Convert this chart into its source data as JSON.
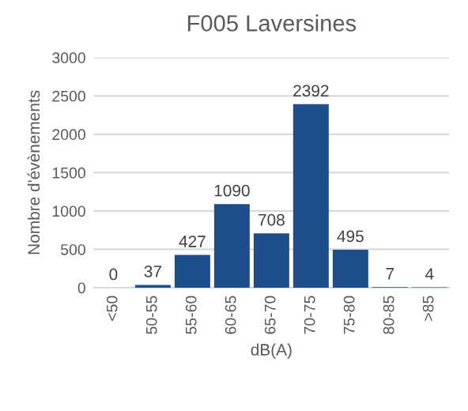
{
  "chart_data": {
    "type": "bar",
    "title": "F005 Laversines",
    "xlabel": "dB(A)",
    "ylabel": "Nombre d'évènements",
    "categories": [
      "<50",
      "50-55",
      "55-60",
      "60-65",
      "65-70",
      "70-75",
      "75-80",
      "80-85",
      ">85"
    ],
    "values": [
      0,
      37,
      427,
      1090,
      708,
      2392,
      495,
      7,
      4
    ],
    "color": "#1f4e8c",
    "ylim": [
      0,
      3000
    ],
    "yticks": [
      0,
      500,
      1000,
      1500,
      2000,
      2500,
      3000
    ],
    "grid": "y",
    "data_labels": true
  }
}
